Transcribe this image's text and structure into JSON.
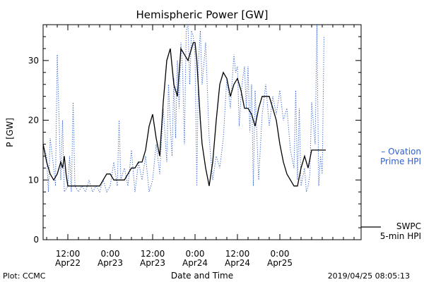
{
  "chart_data": {
    "type": "line",
    "title": "Hemispheric Power [GW]",
    "ylabel": "P [GW]",
    "xlabel": "Date and Time",
    "ylim": [
      0,
      36
    ],
    "xlim_hours": [
      0,
      90
    ],
    "yticks": [
      0,
      10,
      20,
      30
    ],
    "xticks": [
      {
        "hour": 7,
        "time": "12:00",
        "date": "Apr22"
      },
      {
        "hour": 19,
        "time": "0:00",
        "date": "Apr23"
      },
      {
        "hour": 31,
        "time": "12:00",
        "date": "Apr23"
      },
      {
        "hour": 43,
        "time": "0:00",
        "date": "Apr24"
      },
      {
        "hour": 55,
        "time": "12:00",
        "date": "Apr24"
      },
      {
        "hour": 67,
        "time": "0:00",
        "date": "Apr25"
      }
    ],
    "series": [
      {
        "name": "Ovation Prime HPI",
        "color": "#2f5fd0",
        "style": "dotted",
        "x": [
          0.0,
          1.0,
          1.5,
          2.0,
          3.0,
          3.5,
          4.0,
          5.0,
          5.5,
          6.0,
          7.0,
          7.5,
          8.0,
          8.5,
          9.0,
          10.0,
          11.0,
          12.0,
          13.0,
          14.0,
          15.0,
          16.0,
          17.0,
          18.0,
          19.0,
          20.0,
          21.0,
          21.5,
          22.0,
          23.0,
          24.0,
          25.0,
          26.0,
          27.0,
          28.0,
          29.0,
          30.0,
          31.0,
          32.0,
          33.0,
          34.0,
          35.0,
          35.5,
          36.0,
          36.5,
          37.0,
          37.5,
          38.0,
          38.5,
          39.0,
          39.5,
          40.0,
          40.5,
          41.0,
          41.5,
          42.0,
          42.5,
          43.0,
          43.5,
          44.0,
          44.5,
          45.0,
          46.0,
          47.0,
          48.0,
          49.0,
          50.0,
          51.0,
          52.0,
          53.0,
          54.0,
          54.5,
          55.0,
          55.5,
          56.0,
          56.5,
          57.0,
          57.5,
          58.0,
          58.5,
          59.0,
          59.5,
          60.0,
          61.0,
          62.0,
          63.0,
          64.0,
          65.0,
          66.0,
          67.0,
          68.0,
          69.0,
          70.0,
          71.0,
          71.5,
          72.0,
          72.5,
          73.0,
          74.0,
          74.5,
          75.0,
          75.5,
          76.0,
          77.0,
          77.5,
          78.0,
          78.5,
          79.0,
          79.5
        ],
        "y": [
          16.0,
          14.0,
          8.0,
          17.0,
          12.0,
          9.0,
          31.0,
          10.0,
          20.0,
          8.0,
          9.0,
          14.0,
          8.0,
          23.0,
          9.0,
          8.0,
          9.0,
          8.0,
          10.0,
          8.0,
          9.0,
          8.0,
          10.0,
          8.0,
          9.0,
          13.0,
          9.0,
          20.0,
          10.0,
          12.0,
          9.0,
          15.0,
          8.0,
          13.0,
          10.0,
          14.0,
          8.0,
          10.0,
          16.0,
          11.0,
          22.0,
          13.0,
          26.0,
          19.0,
          14.0,
          27.0,
          17.0,
          30.0,
          22.0,
          33.0,
          28.0,
          16.0,
          35.0,
          36.0,
          26.0,
          35.0,
          34.0,
          31.0,
          9.0,
          30.0,
          35.0,
          26.0,
          33.0,
          17.0,
          10.0,
          14.0,
          12.0,
          17.0,
          27.0,
          22.0,
          31.0,
          28.0,
          29.0,
          19.0,
          24.0,
          27.0,
          29.0,
          22.0,
          29.0,
          18.0,
          26.0,
          9.0,
          25.0,
          10.0,
          21.0,
          26.0,
          19.0,
          24.0,
          21.0,
          25.0,
          20.0,
          22.0,
          15.0,
          12.0,
          25.0,
          10.0,
          22.0,
          9.0,
          12.0,
          8.0,
          9.0,
          11.0,
          23.0,
          16.0,
          36.0,
          9.0,
          14.0,
          11.0,
          34.0
        ]
      },
      {
        "name": "SWPC 5-min HPI",
        "color": "#000000",
        "style": "solid",
        "x": [
          0.0,
          1.0,
          2.0,
          3.0,
          4.0,
          4.5,
          5.0,
          5.5,
          6.0,
          6.5,
          7.0,
          8.0,
          9.0,
          10.0,
          11.0,
          12.0,
          13.0,
          14.0,
          15.0,
          16.0,
          17.0,
          18.0,
          19.0,
          20.0,
          21.0,
          22.0,
          23.0,
          24.0,
          25.0,
          26.0,
          27.0,
          28.0,
          29.0,
          30.0,
          31.0,
          32.0,
          33.0,
          34.0,
          35.0,
          36.0,
          37.0,
          38.0,
          39.0,
          40.0,
          41.0,
          42.0,
          42.5,
          43.0,
          43.5,
          44.0,
          44.5,
          45.0,
          46.0,
          47.0,
          48.0,
          49.0,
          50.0,
          51.0,
          52.0,
          53.0,
          54.0,
          55.0,
          56.0,
          57.0,
          58.0,
          59.0,
          60.0,
          61.0,
          62.0,
          63.0,
          64.0,
          65.0,
          66.0,
          67.0,
          68.0,
          69.0,
          70.0,
          71.0,
          72.0,
          73.0,
          74.0,
          75.0,
          76.0,
          77.0,
          78.0,
          79.0,
          79.5,
          80.0
        ],
        "y": [
          16.0,
          13.0,
          11.0,
          10.0,
          11.0,
          12.0,
          13.0,
          12.0,
          14.0,
          11.0,
          9.0,
          9.0,
          9.0,
          9.0,
          9.0,
          9.0,
          9.0,
          9.0,
          9.0,
          9.0,
          10.0,
          11.0,
          11.0,
          10.0,
          10.0,
          10.0,
          10.0,
          11.0,
          12.0,
          12.0,
          13.0,
          13.0,
          15.0,
          19.0,
          21.0,
          17.0,
          14.0,
          23.0,
          30.0,
          32.0,
          26.0,
          24.0,
          32.0,
          31.0,
          30.0,
          32.0,
          33.0,
          33.0,
          30.0,
          25.0,
          20.0,
          16.0,
          12.0,
          9.0,
          13.0,
          20.0,
          26.0,
          28.0,
          27.0,
          24.0,
          26.0,
          27.0,
          25.0,
          22.0,
          22.0,
          21.0,
          19.0,
          22.0,
          24.0,
          24.0,
          24.0,
          22.0,
          20.0,
          16.0,
          13.0,
          11.0,
          10.0,
          9.0,
          9.0,
          12.0,
          14.0,
          12.0,
          15.0,
          15.0,
          15.0,
          15.0,
          15.0,
          15.0
        ]
      }
    ],
    "legend": [
      {
        "lines": [
          "– Ovation",
          "Prime HPI"
        ],
        "color": "#2f5fd0"
      },
      {
        "lines": [
          "SWPC",
          "5-min HPI"
        ],
        "color": "#000000"
      }
    ]
  },
  "footer": {
    "left": "Plot: CCMC",
    "right": "2019/04/25 08:05:13"
  }
}
